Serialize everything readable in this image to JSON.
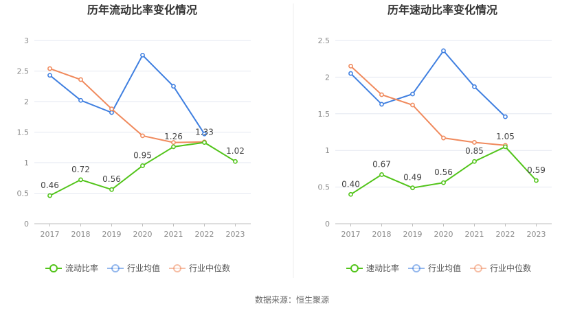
{
  "source": "数据来源：恒生聚源",
  "colors": {
    "primary": "#52c41a",
    "industry_avg": "#3f7fe0",
    "industry_median": "#f08a5d",
    "grid": "#e3e7f0",
    "axis": "#bdbdbd"
  },
  "chart_data": [
    {
      "type": "line",
      "title": "历年流动比率变化情况",
      "categories": [
        "2017",
        "2018",
        "2019",
        "2020",
        "2021",
        "2022",
        "2023"
      ],
      "ylim": [
        0,
        3
      ],
      "yticks": [
        0,
        0.5,
        1,
        1.5,
        2,
        2.5,
        3
      ],
      "ytick_labels": [
        "0",
        "0.5",
        "1",
        "1.5",
        "2",
        "2.5",
        "3"
      ],
      "grid": true,
      "legend_position": "bottom",
      "series": [
        {
          "name": "流动比率",
          "color": "#52c41a",
          "values": [
            0.46,
            0.72,
            0.56,
            0.95,
            1.26,
            1.33,
            1.02
          ],
          "labels": [
            "0.46",
            "0.72",
            "0.56",
            "0.95",
            "1.26",
            "1.33",
            "1.02"
          ]
        },
        {
          "name": "行业均值",
          "color": "#3f7fe0",
          "values": [
            2.43,
            2.02,
            1.82,
            2.76,
            2.25,
            1.47,
            null
          ]
        },
        {
          "name": "行业中位数",
          "color": "#f08a5d",
          "values": [
            2.54,
            2.36,
            1.88,
            1.44,
            1.33,
            1.34,
            null
          ]
        }
      ]
    },
    {
      "type": "line",
      "title": "历年速动比率变化情况",
      "categories": [
        "2017",
        "2018",
        "2019",
        "2020",
        "2021",
        "2022",
        "2023"
      ],
      "ylim": [
        0,
        2.5
      ],
      "yticks": [
        0,
        0.5,
        1,
        1.5,
        2,
        2.5
      ],
      "ytick_labels": [
        "0",
        "0.5",
        "1",
        "1.5",
        "2",
        "2.5"
      ],
      "grid": true,
      "legend_position": "bottom",
      "series": [
        {
          "name": "速动比率",
          "color": "#52c41a",
          "values": [
            0.4,
            0.67,
            0.49,
            0.56,
            0.85,
            1.05,
            0.59
          ],
          "labels": [
            "0.40",
            "0.67",
            "0.49",
            "0.56",
            "0.85",
            "1.05",
            "0.59"
          ]
        },
        {
          "name": "行业均值",
          "color": "#3f7fe0",
          "values": [
            2.05,
            1.63,
            1.77,
            2.36,
            1.87,
            1.46,
            null
          ]
        },
        {
          "name": "行业中位数",
          "color": "#f08a5d",
          "values": [
            2.15,
            1.76,
            1.62,
            1.17,
            1.11,
            1.07,
            null
          ]
        }
      ]
    }
  ]
}
